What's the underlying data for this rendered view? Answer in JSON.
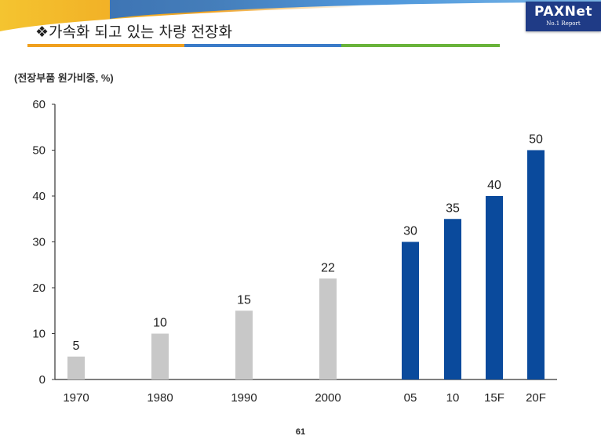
{
  "header": {
    "title": "❖가속화 되고 있는 차량 전장화",
    "logo_main": "PAXNet",
    "logo_sub": "No.1 Report",
    "underline_colors": [
      "#f0a01e",
      "#3a7bc8",
      "#69b33a"
    ]
  },
  "chart_data": {
    "type": "bar",
    "unit_label": "(전장부품 원가비중, %)",
    "categories": [
      "1970",
      "1980",
      "1990",
      "2000",
      "05",
      "10",
      "15F",
      "20F"
    ],
    "values": [
      5,
      10,
      15,
      22,
      30,
      35,
      40,
      50
    ],
    "data_labels": [
      "5",
      "10",
      "15",
      "22",
      "30",
      "35",
      "40",
      "50"
    ],
    "colors": [
      "#c8c8c8",
      "#c8c8c8",
      "#c8c8c8",
      "#c8c8c8",
      "#0a4a9c",
      "#0a4a9c",
      "#0a4a9c",
      "#0a4a9c"
    ],
    "ylim": [
      0,
      60
    ],
    "yticks": [
      "0",
      "10",
      "20",
      "30",
      "40",
      "50",
      "60"
    ],
    "grid": false,
    "legend": "none"
  },
  "footer": {
    "page_number": "61"
  }
}
